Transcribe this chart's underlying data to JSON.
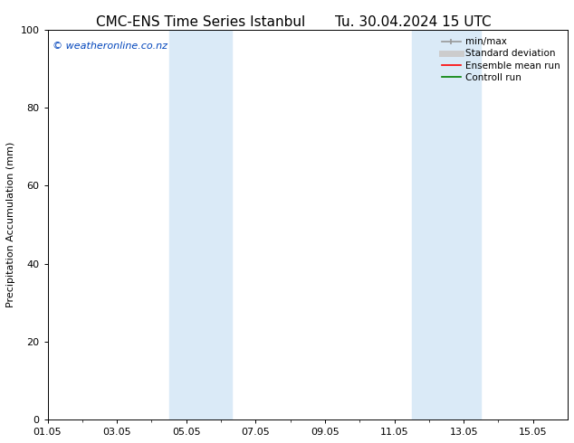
{
  "title_left": "CMC-ENS Time Series Istanbul",
  "title_right": "Tu. 30.04.2024 15 UTC",
  "ylabel": "Precipitation Accumulation (mm)",
  "ylim": [
    0,
    100
  ],
  "yticks": [
    0,
    20,
    40,
    60,
    80,
    100
  ],
  "xtick_labels": [
    "01.05",
    "03.05",
    "05.05",
    "07.05",
    "09.05",
    "11.05",
    "13.05",
    "15.05"
  ],
  "xtick_positions": [
    0,
    2,
    4,
    6,
    8,
    10,
    12,
    14
  ],
  "xlim": [
    0,
    15
  ],
  "shaded_bands": [
    {
      "x_start": 3.5,
      "x_end": 5.3,
      "color": "#daeaf7"
    },
    {
      "x_start": 10.5,
      "x_end": 12.5,
      "color": "#daeaf7"
    }
  ],
  "watermark_text": "© weatheronline.co.nz",
  "watermark_color": "#0044bb",
  "watermark_fontsize": 8,
  "legend_items": [
    {
      "label": "min/max",
      "color": "#aaaaaa",
      "lw": 1.2
    },
    {
      "label": "Standard deviation",
      "color": "#cccccc",
      "lw": 5
    },
    {
      "label": "Ensemble mean run",
      "color": "red",
      "lw": 1.2
    },
    {
      "label": "Controll run",
      "color": "green",
      "lw": 1.2
    }
  ],
  "background_color": "#ffffff",
  "title_fontsize": 11,
  "axis_fontsize": 8,
  "tick_fontsize": 8,
  "legend_fontsize": 7.5
}
